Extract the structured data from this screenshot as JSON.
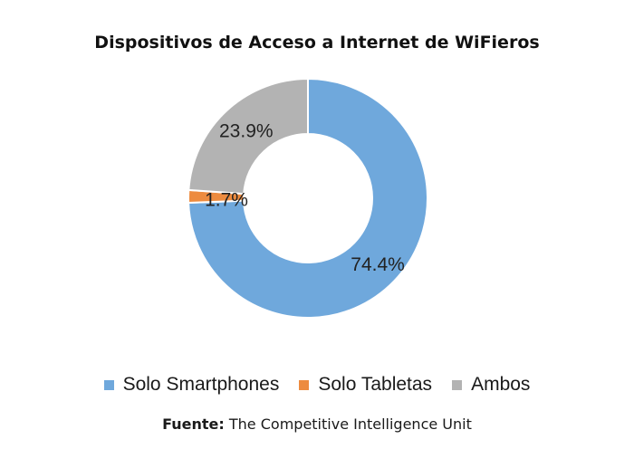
{
  "chart_data": {
    "type": "pie",
    "variant": "donut",
    "title": "Dispositivos de Acceso a Internet de WiFieros",
    "categories": [
      "Solo Smartphones",
      "Solo Tabletas",
      "Ambos"
    ],
    "values": [
      74.4,
      1.7,
      23.9
    ],
    "data_labels": [
      "74.4%",
      "1.7%",
      "23.9%"
    ],
    "colors": [
      "#6fa8dc",
      "#ed8b3f",
      "#b3b3b3"
    ],
    "legend_position": "bottom"
  },
  "source": {
    "label": "Fuente:",
    "text": "The Competitive Intelligence Unit"
  }
}
